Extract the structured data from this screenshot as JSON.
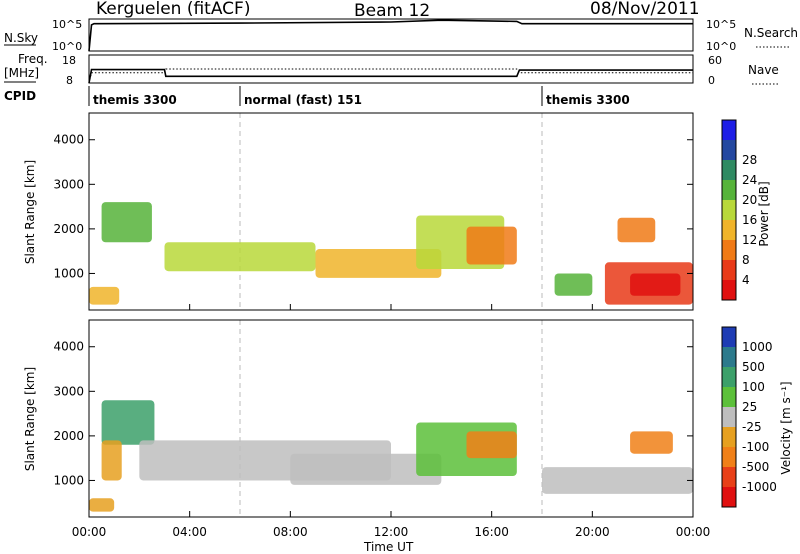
{
  "header": {
    "station": "Kerguelen (fitACF)",
    "beam": "Beam 12",
    "date": "08/Nov/2011"
  },
  "strip_labels": {
    "nsky": "N.Sky",
    "nsearch": "N.Search",
    "freq": "Freq.",
    "freq_unit": "[MHz]",
    "nave": "Nave",
    "cpid": "CPID",
    "nsky_ticks": [
      "10^5",
      "10^0"
    ],
    "nsearch_ticks": [
      "10^5",
      "10^0"
    ],
    "freq_ticks": [
      "18",
      "8"
    ],
    "nave_ticks": [
      "60",
      "0"
    ]
  },
  "cpid_segments": [
    {
      "label": "themis 3300",
      "start": 0,
      "end": 6
    },
    {
      "label": "normal (fast) 151",
      "start": 6,
      "end": 18
    },
    {
      "label": "themis 3300",
      "start": 18,
      "end": 24
    }
  ],
  "axes": {
    "x_ticks": [
      "00:00",
      "04:00",
      "08:00",
      "12:00",
      "16:00",
      "20:00",
      "00:00"
    ],
    "x_values": [
      0,
      4,
      8,
      12,
      16,
      20,
      24
    ],
    "xlabel": "Time UT",
    "y_ticks": [
      "1000",
      "2000",
      "3000",
      "4000"
    ],
    "y_values": [
      1000,
      2000,
      3000,
      4000
    ],
    "ylabel": "Slant Range [km]",
    "ylim": [
      180,
      4600
    ]
  },
  "colorbars": {
    "power": {
      "label": "Power [dB]",
      "ticks": [
        "4",
        "8",
        "12",
        "16",
        "20",
        "24",
        "28"
      ],
      "colors": [
        "#1e1ee6",
        "#2448a0",
        "#2f8a62",
        "#56b33a",
        "#b8d83a",
        "#f0b42a",
        "#f07a16",
        "#e83a18",
        "#e01010"
      ]
    },
    "velocity": {
      "label": "Velocity [m s⁻¹]",
      "ticks": [
        "1000",
        "500",
        "100",
        "25",
        "-25",
        "-100",
        "-500",
        "-1000"
      ],
      "colors": [
        "#1e3cb4",
        "#2c7a8c",
        "#3ca06a",
        "#5cc03a",
        "#bebebe",
        "#e6a020",
        "#f08018",
        "#e84018",
        "#e01010"
      ]
    }
  },
  "chart_data": [
    {
      "type": "line",
      "title": "N.Sky / N.Search",
      "x": [
        0,
        0.1,
        0.2,
        6,
        12,
        14,
        17,
        17.2,
        24
      ],
      "series": [
        {
          "name": "N.Sky",
          "values": [
            0,
            4.4,
            4.6,
            4.7,
            4.9,
            5.2,
            5.0,
            4.6,
            4.6
          ]
        }
      ]
    },
    {
      "type": "line",
      "title": "Freq. / Nave",
      "x": [
        0,
        0.1,
        3,
        3.05,
        17,
        17.1,
        24
      ],
      "series": [
        {
          "name": "Freq. [MHz]",
          "values": [
            8,
            12.8,
            12.8,
            10.4,
            10.4,
            12.6,
            12.6
          ]
        },
        {
          "name": "Nave",
          "values": [
            0,
            22,
            22,
            30,
            30,
            22,
            22
          ]
        }
      ]
    },
    {
      "type": "heatmap",
      "title": "Power [dB]",
      "xlim": [
        0,
        24
      ],
      "ylim": [
        180,
        4600
      ],
      "patches": [
        {
          "t0": 0.0,
          "t1": 1.2,
          "r0": 300,
          "r1": 700,
          "level": 5
        },
        {
          "t0": 0.5,
          "t1": 2.5,
          "r0": 1700,
          "r1": 2600,
          "level": 3
        },
        {
          "t0": 3.0,
          "t1": 9.0,
          "r0": 1050,
          "r1": 1700,
          "level": 4
        },
        {
          "t0": 9.0,
          "t1": 14.0,
          "r0": 900,
          "r1": 1550,
          "level": 5
        },
        {
          "t0": 13.0,
          "t1": 16.5,
          "r0": 1100,
          "r1": 2300,
          "level": 4
        },
        {
          "t0": 15.0,
          "t1": 17.0,
          "r0": 1200,
          "r1": 2050,
          "level": 6
        },
        {
          "t0": 18.5,
          "t1": 20.0,
          "r0": 500,
          "r1": 1000,
          "level": 3
        },
        {
          "t0": 20.5,
          "t1": 24.0,
          "r0": 300,
          "r1": 1250,
          "level": 7
        },
        {
          "t0": 21.5,
          "t1": 23.5,
          "r0": 500,
          "r1": 1000,
          "level": 8
        },
        {
          "t0": 21.0,
          "t1": 22.5,
          "r0": 1700,
          "r1": 2250,
          "level": 6
        }
      ]
    },
    {
      "type": "heatmap",
      "title": "Velocity [m s⁻¹]",
      "xlim": [
        0,
        24
      ],
      "ylim": [
        180,
        4600
      ],
      "patches": [
        {
          "t0": 0.5,
          "t1": 2.6,
          "r0": 1800,
          "r1": 2800,
          "level": 2
        },
        {
          "t0": 0.5,
          "t1": 1.3,
          "r0": 1000,
          "r1": 1900,
          "level": 5
        },
        {
          "t0": 2.0,
          "t1": 12.0,
          "r0": 1000,
          "r1": 1900,
          "level": 4
        },
        {
          "t0": 8.0,
          "t1": 14.0,
          "r0": 900,
          "r1": 1600,
          "level": 4
        },
        {
          "t0": 13.0,
          "t1": 17.0,
          "r0": 1100,
          "r1": 2300,
          "level": 3
        },
        {
          "t0": 15.0,
          "t1": 17.0,
          "r0": 1500,
          "r1": 2100,
          "level": 6
        },
        {
          "t0": 18.0,
          "t1": 24.0,
          "r0": 700,
          "r1": 1300,
          "level": 4
        },
        {
          "t0": 21.5,
          "t1": 23.2,
          "r0": 1600,
          "r1": 2100,
          "level": 6
        },
        {
          "t0": 0.0,
          "t1": 1.0,
          "r0": 300,
          "r1": 600,
          "level": 5
        }
      ]
    }
  ]
}
